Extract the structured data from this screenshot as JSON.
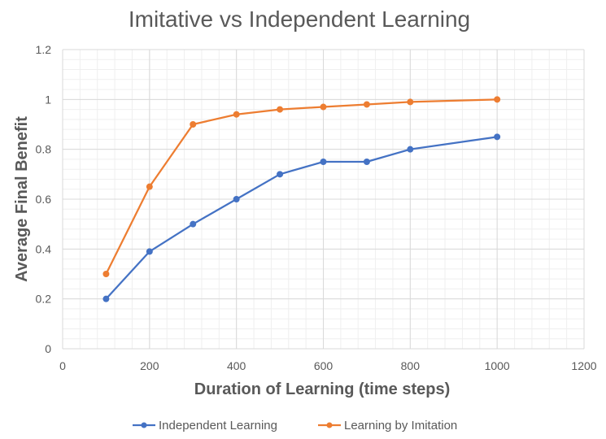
{
  "chart_data": {
    "type": "scatter",
    "title": "Imitative vs Independent Learning",
    "xlabel": "Duration of Learning (time steps)",
    "ylabel": "Average Final Benefit",
    "xlim": [
      0,
      1200
    ],
    "ylim": [
      0,
      1.2
    ],
    "x_ticks": [
      "0",
      "200",
      "400",
      "600",
      "800",
      "1000",
      "1200"
    ],
    "y_ticks": [
      "0",
      "0.2",
      "0.4",
      "0.6",
      "0.8",
      "1",
      "1.2"
    ],
    "x_tick_values": [
      0,
      200,
      400,
      600,
      800,
      1000,
      1200
    ],
    "y_tick_values": [
      0,
      0.2,
      0.4,
      0.6,
      0.8,
      1.0,
      1.2
    ],
    "grid": true,
    "minor_grid": true,
    "lines_connected": true,
    "legend_position": "bottom",
    "series": [
      {
        "name": "Independent Learning",
        "color": "#4472C4",
        "x": [
          100,
          200,
          300,
          400,
          500,
          600,
          700,
          800,
          1000
        ],
        "y": [
          0.2,
          0.39,
          0.5,
          0.6,
          0.7,
          0.75,
          0.75,
          0.8,
          0.85
        ]
      },
      {
        "name": "Learning by Imitation",
        "color": "#ED7D31",
        "x": [
          100,
          200,
          300,
          400,
          500,
          600,
          700,
          800,
          1000
        ],
        "y": [
          0.3,
          0.65,
          0.9,
          0.94,
          0.96,
          0.97,
          0.98,
          0.99,
          1.0
        ]
      }
    ]
  }
}
